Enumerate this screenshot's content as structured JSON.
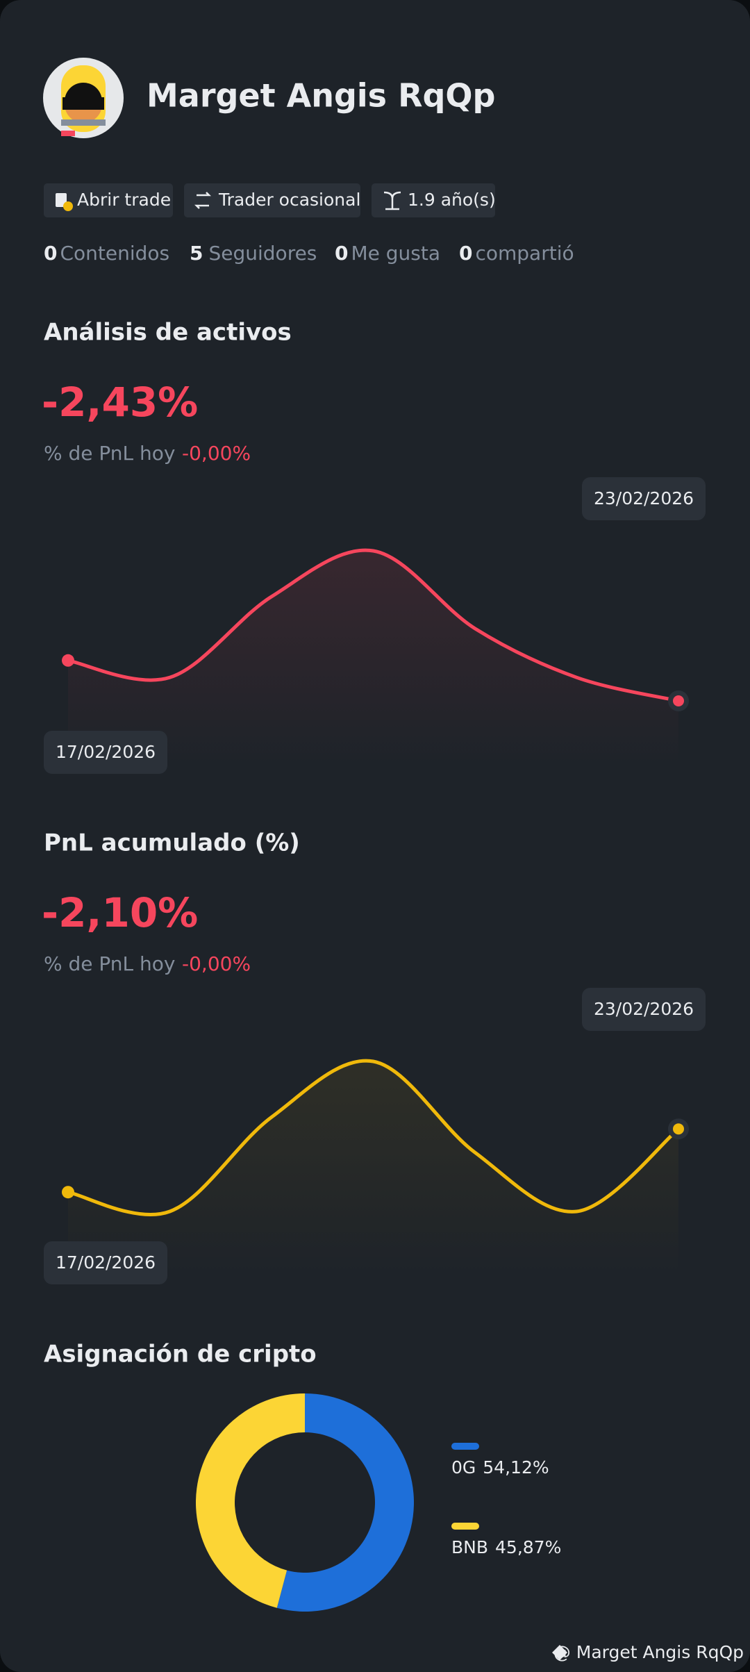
{
  "profile": {
    "name": "Marget Angis RqQp",
    "tags": [
      "Abrir trade",
      "Trader ocasional",
      "1.9 año(s)"
    ],
    "stats": [
      {
        "value": 0,
        "label": "Contenidos"
      },
      {
        "value": 5,
        "label": "Seguidores"
      },
      {
        "value": 0,
        "label": "Me gusta"
      },
      {
        "value": 0,
        "label": "compartió"
      }
    ]
  },
  "chart_data": [
    {
      "type": "line",
      "title": "Análisis de activos",
      "headline": "-2,43%",
      "subtitle_label": "% de PnL hoy",
      "subtitle_value": "-0,00%",
      "categories": [
        "17/02/2026",
        null,
        null,
        null,
        null,
        null,
        "23/02/2026"
      ],
      "series": [
        {
          "color": "#f6465d",
          "values": [
            38,
            22,
            98,
            141,
            68,
            22,
            0
          ]
        }
      ]
    },
    {
      "type": "line",
      "title": "PnL acumulado (%)",
      "headline": "-2,10%",
      "subtitle_label": "% de PnL hoy",
      "subtitle_value": "-0,00%",
      "categories": [
        "17/02/2026",
        null,
        null,
        null,
        null,
        null,
        "23/02/2026"
      ],
      "series": [
        {
          "color": "#f0b90b",
          "values": [
            18,
            0,
            88,
            140,
            55,
            0,
            77
          ]
        }
      ]
    },
    {
      "type": "pie",
      "title": "Asignación de cripto",
      "categories": [
        "0G",
        "BNB"
      ],
      "values": [
        54.12,
        45.87
      ],
      "value_labels": [
        "54,12%",
        "45,87%"
      ],
      "colors": [
        "#1e6fd9",
        "#fcd535"
      ]
    }
  ],
  "footer": "@ Marget Angis RqQp"
}
